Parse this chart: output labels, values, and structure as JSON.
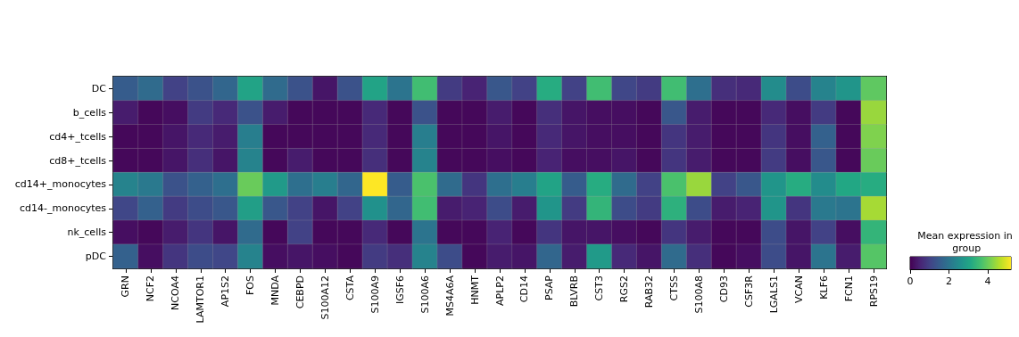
{
  "chart_data": {
    "type": "heatmap",
    "clabel": "Mean expression in group",
    "categories": [
      "GRN",
      "NCF2",
      "NCOA4",
      "LAMTOR1",
      "AP1S2",
      "FOS",
      "MNDA",
      "CEBPD",
      "S100A12",
      "CSTA",
      "S100A9",
      "IGSF6",
      "S100A6",
      "MS4A6A",
      "HNMT",
      "APLP2",
      "CD14",
      "PSAP",
      "BLVRB",
      "CST3",
      "RGS2",
      "RAB32",
      "CTSS",
      "S100A8",
      "CD93",
      "CSF3R",
      "LGALS1",
      "VCAN",
      "KLF6",
      "FCN1",
      "RPS19"
    ],
    "y_categories": [
      "DC",
      "b_cells",
      "cd4+_tcells",
      "cd8+_tcells",
      "cd14+_monocytes",
      "cd14-_monocytes",
      "nk_cells",
      "pDC"
    ],
    "cells": [
      [
        1.5,
        1.8,
        1.0,
        1.3,
        1.7,
        3.0,
        1.8,
        1.3,
        0.3,
        1.3,
        3.0,
        2.0,
        3.6,
        0.9,
        0.5,
        1.4,
        1.0,
        3.2,
        1.0,
        3.6,
        1.1,
        0.9,
        3.6,
        1.9,
        0.7,
        0.6,
        2.5,
        1.2,
        2.3,
        2.7,
        3.9
      ],
      [
        0.4,
        0.1,
        0.2,
        0.9,
        0.6,
        1.3,
        0.4,
        0.1,
        0.1,
        0.1,
        0.6,
        0.1,
        1.3,
        0.1,
        0.1,
        0.4,
        0.1,
        0.7,
        0.3,
        0.2,
        0.2,
        0.1,
        1.4,
        0.4,
        0.1,
        0.1,
        0.6,
        0.2,
        0.9,
        0.1,
        4.4
      ],
      [
        0.1,
        0.1,
        0.3,
        0.6,
        0.4,
        2.2,
        0.1,
        0.1,
        0.1,
        0.1,
        0.6,
        0.1,
        2.2,
        0.1,
        0.1,
        0.3,
        0.1,
        0.6,
        0.3,
        0.2,
        0.2,
        0.1,
        0.8,
        0.4,
        0.1,
        0.1,
        0.8,
        0.2,
        1.6,
        0.1,
        4.2
      ],
      [
        0.1,
        0.1,
        0.3,
        0.7,
        0.3,
        2.3,
        0.1,
        0.4,
        0.1,
        0.1,
        0.7,
        0.1,
        2.3,
        0.1,
        0.1,
        0.2,
        0.1,
        0.5,
        0.2,
        0.2,
        0.3,
        0.1,
        0.8,
        0.4,
        0.1,
        0.1,
        0.9,
        0.2,
        1.4,
        0.1,
        4.0
      ],
      [
        2.3,
        2.1,
        1.3,
        1.6,
        1.9,
        4.0,
        2.8,
        1.9,
        2.2,
        1.7,
        5.2,
        1.5,
        3.7,
        1.8,
        0.8,
        1.9,
        2.2,
        3.0,
        1.5,
        3.2,
        1.8,
        1.0,
        3.7,
        4.4,
        1.0,
        1.4,
        2.7,
        3.2,
        2.5,
        3.1,
        3.2
      ],
      [
        1.1,
        1.6,
        0.9,
        1.2,
        1.4,
        2.9,
        1.4,
        1.0,
        0.3,
        1.0,
        2.6,
        1.7,
        3.6,
        0.4,
        0.5,
        1.2,
        0.4,
        2.7,
        0.9,
        3.4,
        1.2,
        0.9,
        3.3,
        1.2,
        0.4,
        0.5,
        2.7,
        0.8,
        2.1,
        2.0,
        4.5
      ],
      [
        0.2,
        0.1,
        0.4,
        0.8,
        0.3,
        1.8,
        0.1,
        1.0,
        0.1,
        0.1,
        0.6,
        0.1,
        2.0,
        0.1,
        0.1,
        0.5,
        0.1,
        0.8,
        0.3,
        0.3,
        0.2,
        0.1,
        0.8,
        0.4,
        0.1,
        0.1,
        1.2,
        0.3,
        1.0,
        0.2,
        3.4
      ],
      [
        1.6,
        0.2,
        0.8,
        1.2,
        1.1,
        2.3,
        0.2,
        0.3,
        0.2,
        0.1,
        0.9,
        0.7,
        2.3,
        1.2,
        0.1,
        0.4,
        0.3,
        1.7,
        0.4,
        2.8,
        0.6,
        0.3,
        1.8,
        0.7,
        0.1,
        0.2,
        1.2,
        0.3,
        2.0,
        0.4,
        3.8
      ]
    ],
    "clim": [
      0,
      5.2
    ],
    "cticks": [
      0,
      2,
      4
    ]
  }
}
